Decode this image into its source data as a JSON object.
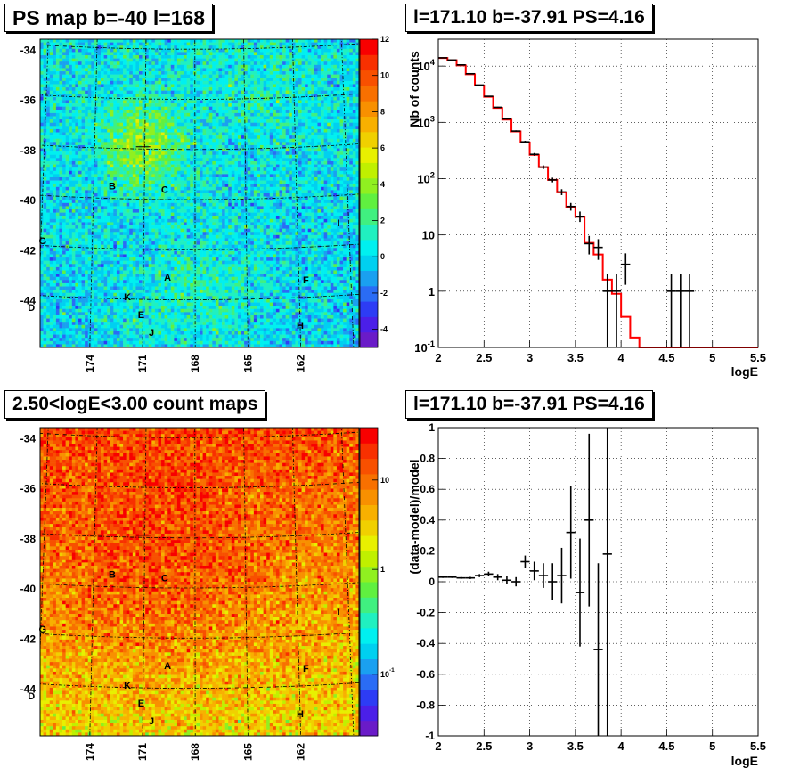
{
  "chart_data": [
    {
      "type": "heatmap",
      "title": "PS map b=-40 l=168",
      "y_ticks": [
        "-34",
        "-36",
        "-38",
        "-40",
        "-42",
        "-44"
      ],
      "x_ticks": [
        "174",
        "171",
        "168",
        "165",
        "162"
      ],
      "colorbar_ticks": [
        "12",
        "10",
        "8",
        "6",
        "4",
        "2",
        "0",
        "-2",
        "-4"
      ],
      "zlim": [
        -5,
        12
      ],
      "source_labels": [
        {
          "label": "B",
          "l": 172.9,
          "b": -39.5
        },
        {
          "label": "C",
          "l": 169.8,
          "b": -39.6
        },
        {
          "label": "G",
          "l": 176.9,
          "b": -41.8
        },
        {
          "label": "A",
          "l": 169.6,
          "b": -43.1
        },
        {
          "label": "K",
          "l": 171.9,
          "b": -43.9
        },
        {
          "label": "D",
          "l": 177.4,
          "b": -44.5
        },
        {
          "label": "E",
          "l": 171.1,
          "b": -44.6
        },
        {
          "label": "J",
          "l": 170.5,
          "b": -45.3
        },
        {
          "label": "F",
          "l": 161.6,
          "b": -43.3
        },
        {
          "label": "H",
          "l": 162.0,
          "b": -45.1
        },
        {
          "label": "I",
          "l": 159.6,
          "b": -41.1
        }
      ]
    },
    {
      "type": "line",
      "title": "l=171.10 b=-37.91 PS=4.16",
      "xlabel": "logE",
      "ylabel": "Nb of counts",
      "xlim": [
        2,
        5.5
      ],
      "ylim": [
        0.1,
        30000
      ],
      "log_y": true,
      "grid": true,
      "x_ticks": [
        "2",
        "2.5",
        "3",
        "3.5",
        "4",
        "4.5",
        "5",
        "5.5"
      ],
      "y_ticks": [
        {
          "value": 0.1,
          "base": "10",
          "exp": "-1"
        },
        {
          "value": 1,
          "base": "1",
          "exp": ""
        },
        {
          "value": 10,
          "base": "10",
          "exp": ""
        },
        {
          "value": 100,
          "base": "10",
          "exp": "2"
        },
        {
          "value": 1000,
          "base": "10",
          "exp": "3"
        },
        {
          "value": 10000,
          "base": "10",
          "exp": "4"
        }
      ],
      "data_points": [
        {
          "x": 2.05,
          "y": 14000,
          "yerr_lo": 13900,
          "yerr_hi": 14100
        },
        {
          "x": 2.15,
          "y": 12800,
          "yerr_lo": 12700,
          "yerr_hi": 12900
        },
        {
          "x": 2.25,
          "y": 10500,
          "yerr_lo": 10400,
          "yerr_hi": 10600
        },
        {
          "x": 2.35,
          "y": 7300,
          "yerr_lo": 7200,
          "yerr_hi": 7400
        },
        {
          "x": 2.45,
          "y": 4600,
          "yerr_lo": 4530,
          "yerr_hi": 4670
        },
        {
          "x": 2.55,
          "y": 2900,
          "yerr_lo": 2850,
          "yerr_hi": 2950
        },
        {
          "x": 2.65,
          "y": 1850,
          "yerr_lo": 1810,
          "yerr_hi": 1890
        },
        {
          "x": 2.75,
          "y": 1150,
          "yerr_lo": 1120,
          "yerr_hi": 1180
        },
        {
          "x": 2.85,
          "y": 700,
          "yerr_lo": 680,
          "yerr_hi": 720
        },
        {
          "x": 2.95,
          "y": 450,
          "yerr_lo": 430,
          "yerr_hi": 470
        },
        {
          "x": 3.05,
          "y": 270,
          "yerr_lo": 255,
          "yerr_hi": 285
        },
        {
          "x": 3.15,
          "y": 160,
          "yerr_lo": 148,
          "yerr_hi": 172
        },
        {
          "x": 3.25,
          "y": 95,
          "yerr_lo": 86,
          "yerr_hi": 104
        },
        {
          "x": 3.35,
          "y": 58,
          "yerr_lo": 51,
          "yerr_hi": 65
        },
        {
          "x": 3.45,
          "y": 32,
          "yerr_lo": 27,
          "yerr_hi": 37
        },
        {
          "x": 3.55,
          "y": 21,
          "yerr_lo": 17,
          "yerr_hi": 26
        },
        {
          "x": 3.65,
          "y": 7,
          "yerr_lo": 4.5,
          "yerr_hi": 9.6
        },
        {
          "x": 3.75,
          "y": 6,
          "yerr_lo": 3.6,
          "yerr_hi": 8.4
        },
        {
          "x": 3.85,
          "y": 1,
          "yerr_lo": 0.1,
          "yerr_hi": 2
        },
        {
          "x": 3.95,
          "y": 1,
          "yerr_lo": 0.1,
          "yerr_hi": 2
        },
        {
          "x": 4.05,
          "y": 3,
          "yerr_lo": 1.3,
          "yerr_hi": 4.7
        },
        {
          "x": 4.55,
          "y": 1,
          "yerr_lo": 0.1,
          "yerr_hi": 2
        },
        {
          "x": 4.65,
          "y": 1,
          "yerr_lo": 0.1,
          "yerr_hi": 2
        },
        {
          "x": 4.75,
          "y": 1,
          "yerr_lo": 0.1,
          "yerr_hi": 2
        }
      ],
      "model": {
        "color": "#ff0000",
        "bin_edges": [
          2.0,
          2.1,
          2.2,
          2.3,
          2.4,
          2.5,
          2.6,
          2.7,
          2.8,
          2.9,
          3.0,
          3.1,
          3.2,
          3.3,
          3.4,
          3.5,
          3.6,
          3.7,
          3.8,
          3.9,
          4.0,
          4.1,
          4.2,
          5.5
        ],
        "values": [
          13900,
          12700,
          10300,
          7150,
          4500,
          2850,
          1800,
          1120,
          690,
          440,
          265,
          160,
          95,
          57,
          31,
          21,
          7.2,
          4.5,
          1.6,
          0.9,
          0.35,
          0.15,
          0.1
        ]
      }
    },
    {
      "type": "heatmap",
      "title": "2.50<logE<3.00 count maps",
      "y_ticks": [
        "-34",
        "-36",
        "-38",
        "-40",
        "-42",
        "-44"
      ],
      "x_ticks": [
        "174",
        "171",
        "168",
        "165",
        "162"
      ],
      "colorbar_ticks": [
        {
          "base": "10",
          "exp": ""
        },
        {
          "base": "1",
          "exp": ""
        },
        {
          "base": "10",
          "exp": "-1"
        }
      ],
      "log_z": true,
      "source_labels": [
        {
          "label": "B",
          "l": 172.9,
          "b": -39.5
        },
        {
          "label": "C",
          "l": 169.8,
          "b": -39.6
        },
        {
          "label": "G",
          "l": 176.9,
          "b": -41.8
        },
        {
          "label": "A",
          "l": 169.6,
          "b": -43.1
        },
        {
          "label": "K",
          "l": 171.9,
          "b": -43.9
        },
        {
          "label": "D",
          "l": 177.4,
          "b": -44.5
        },
        {
          "label": "E",
          "l": 171.1,
          "b": -44.6
        },
        {
          "label": "J",
          "l": 170.5,
          "b": -45.3
        },
        {
          "label": "F",
          "l": 161.6,
          "b": -43.3
        },
        {
          "label": "H",
          "l": 162.0,
          "b": -45.1
        },
        {
          "label": "I",
          "l": 159.6,
          "b": -41.1
        }
      ]
    },
    {
      "type": "scatter",
      "title": "l=171.10 b=-37.91 PS=4.16",
      "xlabel": "logE",
      "ylabel": "(data-model)/model",
      "xlim": [
        2,
        5.5
      ],
      "ylim": [
        -1,
        1
      ],
      "grid": true,
      "x_ticks": [
        "2",
        "2.5",
        "3",
        "3.5",
        "4",
        "4.5",
        "5",
        "5.5"
      ],
      "y_ticks": [
        "1",
        "0.8",
        "0.6",
        "0.4",
        "0.2",
        "0",
        "-0.2",
        "-0.4",
        "-0.6",
        "-0.8",
        "-1"
      ],
      "points": [
        {
          "x": 2.05,
          "y": 0.03,
          "err": 0.005
        },
        {
          "x": 2.15,
          "y": 0.03,
          "err": 0.005
        },
        {
          "x": 2.25,
          "y": 0.025,
          "err": 0.006
        },
        {
          "x": 2.35,
          "y": 0.025,
          "err": 0.007
        },
        {
          "x": 2.45,
          "y": 0.04,
          "err": 0.01
        },
        {
          "x": 2.55,
          "y": 0.05,
          "err": 0.015
        },
        {
          "x": 2.65,
          "y": 0.03,
          "err": 0.02
        },
        {
          "x": 2.75,
          "y": 0.01,
          "err": 0.025
        },
        {
          "x": 2.85,
          "y": 0.0,
          "err": 0.03
        },
        {
          "x": 2.95,
          "y": 0.13,
          "err": 0.04
        },
        {
          "x": 3.05,
          "y": 0.07,
          "err": 0.06
        },
        {
          "x": 3.15,
          "y": 0.04,
          "err": 0.08
        },
        {
          "x": 3.25,
          "y": 0.0,
          "err": 0.12
        },
        {
          "x": 3.35,
          "y": 0.04,
          "err": 0.18
        },
        {
          "x": 3.45,
          "y": 0.32,
          "err": 0.3
        },
        {
          "x": 3.55,
          "y": -0.07,
          "err": 0.35
        },
        {
          "x": 3.65,
          "y": 0.4,
          "err": 0.56
        },
        {
          "x": 3.75,
          "y": -0.44,
          "err": 0.56
        },
        {
          "x": 3.85,
          "y": 0.18,
          "err": 1.2
        }
      ]
    }
  ]
}
